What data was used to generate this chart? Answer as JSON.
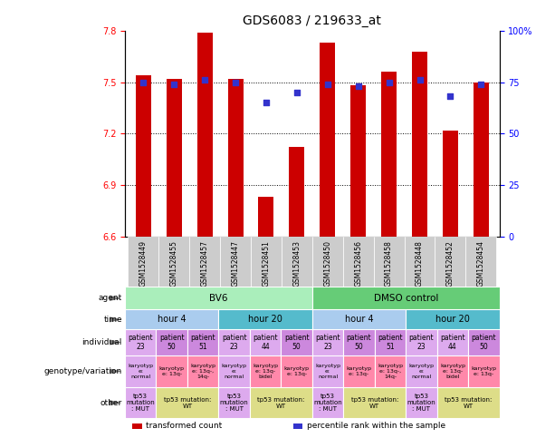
{
  "title": "GDS6083 / 219633_at",
  "samples": [
    "GSM1528449",
    "GSM1528455",
    "GSM1528457",
    "GSM1528447",
    "GSM1528451",
    "GSM1528453",
    "GSM1528450",
    "GSM1528456",
    "GSM1528458",
    "GSM1528448",
    "GSM1528452",
    "GSM1528454"
  ],
  "bar_values": [
    7.54,
    7.52,
    7.79,
    7.52,
    6.83,
    7.12,
    7.73,
    7.48,
    7.56,
    7.68,
    7.22,
    7.5
  ],
  "dot_values": [
    75,
    74,
    76,
    75,
    65,
    70,
    74,
    73,
    75,
    76,
    68,
    74
  ],
  "bar_base": 6.6,
  "ylim_left": [
    6.6,
    7.8
  ],
  "ylim_right": [
    0,
    100
  ],
  "yticks_left": [
    6.6,
    6.9,
    7.2,
    7.5,
    7.8
  ],
  "yticks_right": [
    0,
    25,
    50,
    75,
    100
  ],
  "hlines": [
    6.9,
    7.2,
    7.5
  ],
  "bar_color": "#cc0000",
  "dot_color": "#3333cc",
  "xtick_bg": "#cccccc",
  "agent_row": {
    "label": "agent",
    "groups": [
      {
        "text": "BV6",
        "span": 6,
        "color": "#aaeebb"
      },
      {
        "text": "DMSO control",
        "span": 6,
        "color": "#66cc77"
      }
    ]
  },
  "time_row": {
    "label": "time",
    "groups": [
      {
        "text": "hour 4",
        "span": 3,
        "color": "#aaccee"
      },
      {
        "text": "hour 20",
        "span": 3,
        "color": "#55bbcc"
      },
      {
        "text": "hour 4",
        "span": 3,
        "color": "#aaccee"
      },
      {
        "text": "hour 20",
        "span": 3,
        "color": "#55bbcc"
      }
    ]
  },
  "individual_row": {
    "label": "individual",
    "cells": [
      {
        "text": "patient\n23",
        "color": "#ddaaee"
      },
      {
        "text": "patient\n50",
        "color": "#cc88dd"
      },
      {
        "text": "patient\n51",
        "color": "#cc88dd"
      },
      {
        "text": "patient\n23",
        "color": "#ddaaee"
      },
      {
        "text": "patient\n44",
        "color": "#ddaaee"
      },
      {
        "text": "patient\n50",
        "color": "#cc88dd"
      },
      {
        "text": "patient\n23",
        "color": "#ddaaee"
      },
      {
        "text": "patient\n50",
        "color": "#cc88dd"
      },
      {
        "text": "patient\n51",
        "color": "#cc88dd"
      },
      {
        "text": "patient\n23",
        "color": "#ddaaee"
      },
      {
        "text": "patient\n44",
        "color": "#ddaaee"
      },
      {
        "text": "patient\n50",
        "color": "#cc88dd"
      }
    ]
  },
  "geno_row": {
    "label": "genotype/variation",
    "cells": [
      {
        "text": "karyotyp\ne:\nnormal",
        "color": "#ddaaee"
      },
      {
        "text": "karyotyp\ne: 13q-",
        "color": "#ff88aa"
      },
      {
        "text": "karyotyp\ne: 13q-,\n14q-",
        "color": "#ff88aa"
      },
      {
        "text": "karyotyp\ne:\nnormal",
        "color": "#ddaaee"
      },
      {
        "text": "karyotyp\ne: 13q-\nbidel",
        "color": "#ff88aa"
      },
      {
        "text": "karyotyp\ne: 13q-",
        "color": "#ff88aa"
      },
      {
        "text": "karyotyp\ne:\nnormal",
        "color": "#ddaaee"
      },
      {
        "text": "karyotyp\ne: 13q-",
        "color": "#ff88aa"
      },
      {
        "text": "karyotyp\ne: 13q-,\n14q-",
        "color": "#ff88aa"
      },
      {
        "text": "karyotyp\ne:\nnormal",
        "color": "#ddaaee"
      },
      {
        "text": "karyotyp\ne: 13q-\nbidel",
        "color": "#ff88aa"
      },
      {
        "text": "karyotyp\ne: 13q-",
        "color": "#ff88aa"
      }
    ]
  },
  "other_row": {
    "label": "other",
    "groups": [
      {
        "text": "tp53\nmutation\n: MUT",
        "span": 1,
        "color": "#ddaaee"
      },
      {
        "text": "tp53 mutation:\nWT",
        "span": 2,
        "color": "#dddd88"
      },
      {
        "text": "tp53\nmutation\n: MUT",
        "span": 1,
        "color": "#ddaaee"
      },
      {
        "text": "tp53 mutation:\nWT",
        "span": 2,
        "color": "#dddd88"
      },
      {
        "text": "tp53\nmutation\n: MUT",
        "span": 1,
        "color": "#ddaaee"
      },
      {
        "text": "tp53 mutation:\nWT",
        "span": 2,
        "color": "#dddd88"
      },
      {
        "text": "tp53\nmutation\n: MUT",
        "span": 1,
        "color": "#ddaaee"
      },
      {
        "text": "tp53 mutation:\nWT",
        "span": 2,
        "color": "#dddd88"
      }
    ]
  },
  "legend": [
    {
      "label": "transformed count",
      "color": "#cc0000"
    },
    {
      "label": "percentile rank within the sample",
      "color": "#3333cc"
    }
  ]
}
